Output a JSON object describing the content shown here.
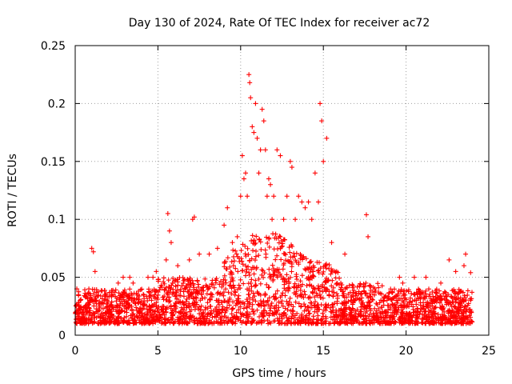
{
  "chart_data": {
    "type": "scatter",
    "title": "Day 130 of 2024, Rate Of TEC Index for receiver ac72",
    "xlabel": "GPS time / hours",
    "ylabel": "ROTI / TECUs",
    "xlim": [
      0,
      25
    ],
    "ylim": [
      0,
      0.25
    ],
    "x_ticks": [
      "0",
      "5",
      "10",
      "15",
      "20",
      "25"
    ],
    "y_ticks": [
      "0",
      "0.05",
      "0.1",
      "0.15",
      "0.2",
      "0.25"
    ],
    "grid": true,
    "marker": "plus",
    "color": "#ff0000",
    "series": [
      {
        "name": "",
        "x": [
          0.1,
          0.2,
          0.3,
          1.0,
          1.1,
          1.2,
          2.6,
          2.9,
          3.3,
          3.5,
          4.4,
          4.7,
          4.9,
          5.5,
          5.6,
          5.7,
          5.8,
          6.2,
          6.9,
          7.1,
          7.2,
          7.5,
          8.1,
          8.6,
          9.0,
          9.2,
          9.5,
          9.8,
          10.0,
          10.1,
          10.2,
          10.3,
          10.4,
          10.5,
          10.55,
          10.6,
          10.7,
          10.8,
          10.9,
          11.0,
          11.1,
          11.2,
          11.3,
          11.4,
          11.5,
          11.6,
          11.7,
          11.8,
          11.9,
          12.0,
          12.2,
          12.4,
          12.6,
          12.8,
          13.0,
          13.1,
          13.3,
          13.5,
          13.7,
          13.9,
          14.1,
          14.3,
          14.5,
          14.7,
          14.8,
          14.9,
          15.0,
          15.2,
          15.5,
          15.8,
          16.3,
          16.9,
          17.6,
          17.7,
          19.4,
          19.6,
          19.8,
          20.5,
          21.2,
          22.1,
          22.6,
          23.0,
          23.5,
          23.6,
          23.9
        ],
        "y": [
          0.04,
          0.035,
          0.03,
          0.075,
          0.072,
          0.055,
          0.045,
          0.05,
          0.05,
          0.045,
          0.05,
          0.05,
          0.055,
          0.065,
          0.105,
          0.09,
          0.08,
          0.06,
          0.065,
          0.1,
          0.102,
          0.07,
          0.07,
          0.075,
          0.095,
          0.11,
          0.08,
          0.085,
          0.12,
          0.155,
          0.135,
          0.14,
          0.12,
          0.225,
          0.218,
          0.205,
          0.18,
          0.175,
          0.2,
          0.17,
          0.14,
          0.16,
          0.195,
          0.185,
          0.16,
          0.12,
          0.135,
          0.13,
          0.1,
          0.12,
          0.16,
          0.155,
          0.1,
          0.12,
          0.15,
          0.145,
          0.1,
          0.12,
          0.115,
          0.11,
          0.115,
          0.1,
          0.14,
          0.115,
          0.2,
          0.185,
          0.15,
          0.17,
          0.08,
          0.055,
          0.07,
          0.03,
          0.104,
          0.085,
          0.03,
          0.05,
          0.045,
          0.05,
          0.05,
          0.045,
          0.065,
          0.055,
          0.06,
          0.07,
          0.054
        ]
      }
    ],
    "dense_band": {
      "y_low": 0.01,
      "y_high": 0.04,
      "x_range": [
        0,
        24
      ]
    }
  }
}
